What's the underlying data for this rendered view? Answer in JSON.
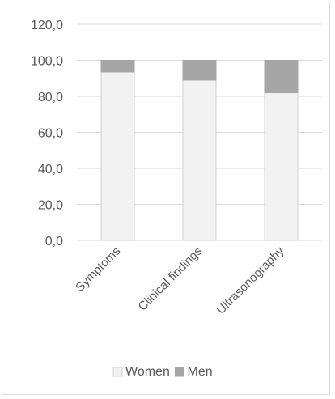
{
  "chart_data": {
    "type": "bar",
    "stacked": true,
    "categories": [
      "Symptoms",
      "Clinical findings",
      "Ultrasonography"
    ],
    "series": [
      {
        "name": "Women",
        "values": [
          93.5,
          89.0,
          82.0
        ],
        "color": "#f2f2f2",
        "border": "#d0d0d0"
      },
      {
        "name": "Men",
        "values": [
          6.5,
          11.0,
          18.0
        ],
        "color": "#a6a6a6",
        "border": "#a6a6a6"
      }
    ],
    "ylim": [
      0,
      120
    ],
    "yticks": [
      "0,0",
      "20,0",
      "40,0",
      "60,0",
      "80,0",
      "100,0",
      "120,0"
    ],
    "ytick_values": [
      0,
      20,
      40,
      60,
      80,
      100,
      120
    ],
    "grid": true,
    "legend": "bottom",
    "title": "",
    "xlabel": "",
    "ylabel": ""
  }
}
